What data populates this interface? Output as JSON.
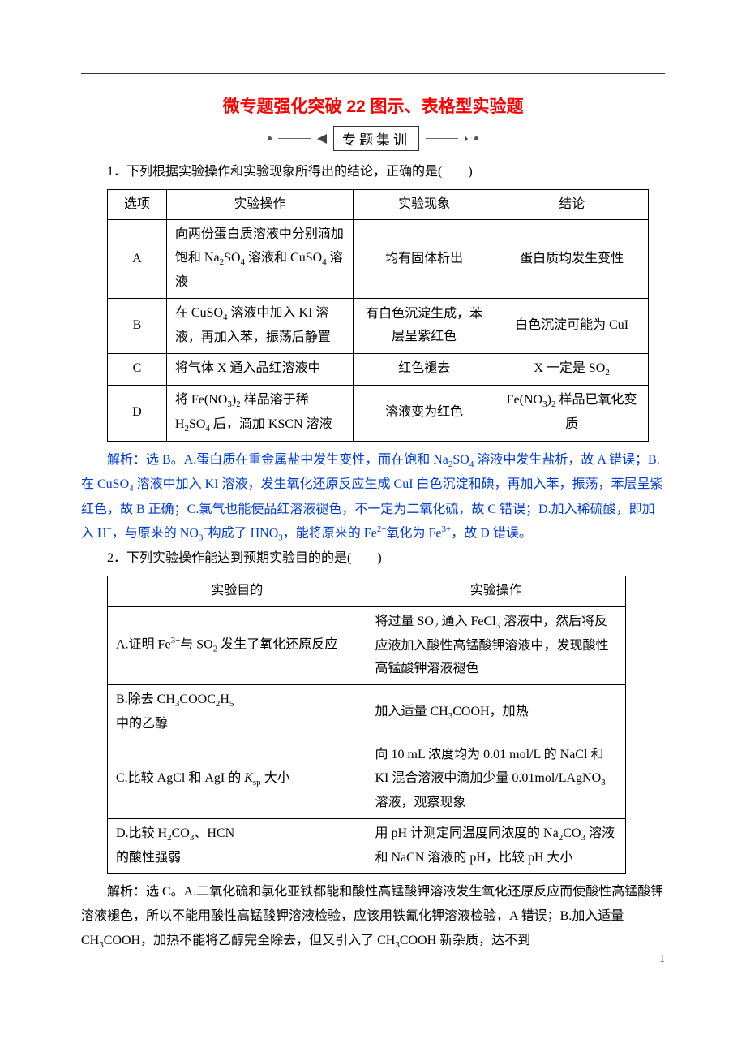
{
  "header": {
    "title": "微专题强化突破 22 图示、表格型实验题",
    "subtitle": "专题集训"
  },
  "q1": {
    "stem": "1．下列根据实验操作和实验现象所得出的结论，正确的是(　　)",
    "table": {
      "headers": [
        "选项",
        "实验操作",
        "实验现象",
        "结论"
      ],
      "rows": [
        {
          "opt": "A",
          "op": "向两份蛋白质溶液中分别滴加饱和 Na₂SO₄ 溶液和 CuSO₄ 溶液",
          "phen": "均有固体析出",
          "concl": "蛋白质均发生变性"
        },
        {
          "opt": "B",
          "op": "在 CuSO₄ 溶液中加入 KI 溶液，再加入苯，振荡后静置",
          "phen": "有白色沉淀生成，苯层呈紫红色",
          "concl": "白色沉淀可能为 CuI"
        },
        {
          "opt": "C",
          "op": "将气体 X 通入品红溶液中",
          "phen": "红色褪去",
          "concl": "X 一定是 SO₂"
        },
        {
          "opt": "D",
          "op": "将 Fe(NO₃)₂ 样品溶于稀 H₂SO₄ 后，滴加 KSCN 溶液",
          "phen": "溶液变为红色",
          "concl": "Fe(NO₃)₂ 样品已氧化变质"
        }
      ]
    },
    "analysis": "解析：选 B。A.蛋白质在重金属盐中发生变性，而在饱和 Na₂SO₄ 溶液中发生盐析，故 A 错误；B.在 CuSO₄ 溶液中加入 KI 溶液，发生氧化还原反应生成 CuI 白色沉淀和碘，再加入苯，振荡，苯层呈紫红色，故 B 正确；C.氯气也能使品红溶液褪色，不一定为二氧化硫，故 C 错误；D.加入稀硫酸，即加入 H⁺，与原来的 NO₃⁻构成了 HNO₃，能将原来的 Fe²⁺氧化为 Fe³⁺，故 D 错误。"
  },
  "q2": {
    "stem": "2．下列实验操作能达到预期实验目的的是(　　)",
    "table": {
      "headers": [
        "实验目的",
        "实验操作"
      ],
      "rows": [
        {
          "purpose": "A.证明 Fe³⁺与 SO₂ 发生了氧化还原反应",
          "op": "将过量 SO₂ 通入 FeCl₃ 溶液中，然后将反应液加入酸性高锰酸钾溶液中，发现酸性高锰酸钾溶液褪色"
        },
        {
          "purpose": "B.除去 CH₃COOC₂H₅\n中的乙醇",
          "op": "加入适量 CH₃COOH，加热"
        },
        {
          "purpose": "C.比较 AgCl 和 AgI 的 Kₛₚ 大小",
          "op": "向 10 mL 浓度均为 0.01 mol/L 的 NaCl 和 KI 混合溶液中滴加少量 0.01mol/LAgNO₃ 溶液，观察现象"
        },
        {
          "purpose": "D.比较 H₂CO₃、HCN\n的酸性强弱",
          "op": "用 pH 计测定同温度同浓度的 Na₂CO₃ 溶液和 NaCN 溶液的 pH，比较 pH 大小"
        }
      ]
    },
    "analysis": "解析：选 C。A.二氧化硫和氯化亚铁都能和酸性高锰酸钾溶液发生氧化还原反应而使酸性高锰酸钾溶液褪色，所以不能用酸性高锰酸钾溶液检验，应该用铁氰化钾溶液检验，A 错误；B.加入适量 CH₃COOH，加热不能将乙醇完全除去，但又引入了 CH₃COOH 新杂质，达不到"
  },
  "page_number": "1"
}
